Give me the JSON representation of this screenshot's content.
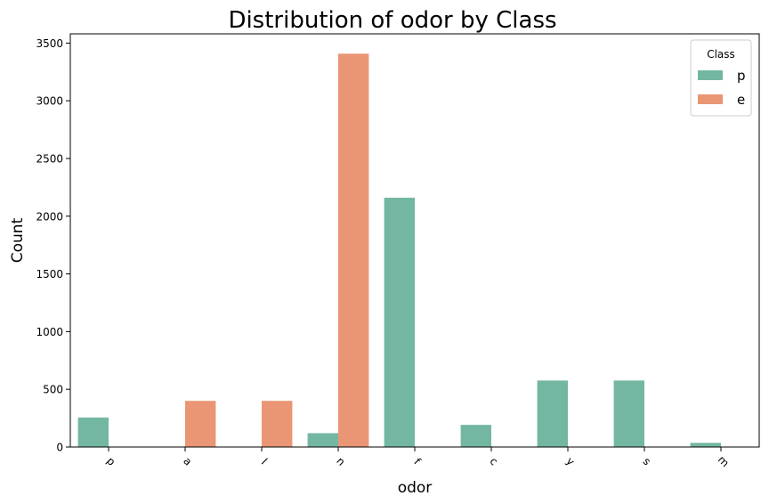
{
  "chart_data": {
    "type": "bar",
    "title": "Distribution of odor by Class",
    "xlabel": "odor",
    "ylabel": "Count",
    "categories": [
      "p",
      "a",
      "l",
      "n",
      "f",
      "c",
      "y",
      "s",
      "m"
    ],
    "series": [
      {
        "name": "p",
        "color": "#73b7a2",
        "values": [
          256,
          0,
          0,
          120,
          2160,
          192,
          576,
          576,
          36
        ]
      },
      {
        "name": "e",
        "color": "#ea9675",
        "values": [
          0,
          400,
          400,
          3408,
          0,
          0,
          0,
          0,
          0
        ]
      }
    ],
    "ylim": [
      0,
      3580
    ],
    "yticks": [
      0,
      500,
      1000,
      1500,
      2000,
      2500,
      3000,
      3500
    ],
    "legend": {
      "title": "Class",
      "position": "top-right"
    },
    "grid": false
  }
}
